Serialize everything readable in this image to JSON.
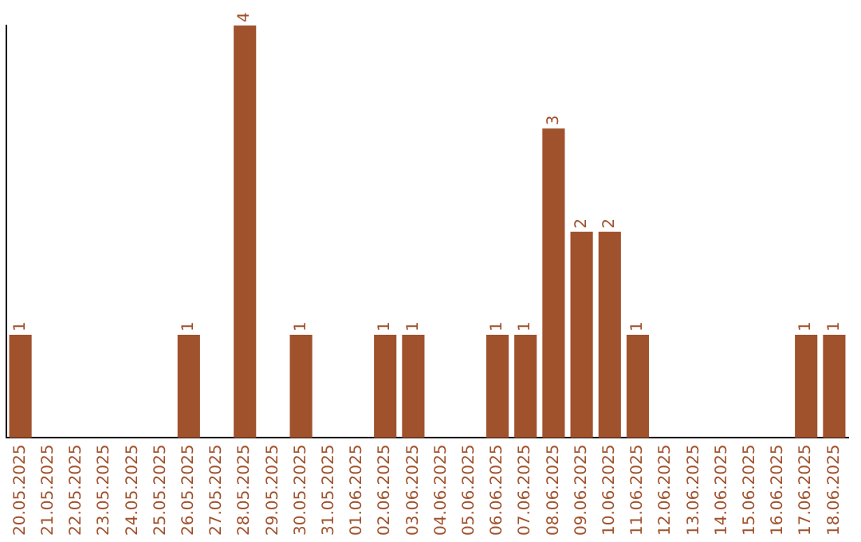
{
  "chart_data": {
    "type": "bar",
    "categories": [
      "20.05.2025",
      "21.05.2025",
      "22.05.2025",
      "23.05.2025",
      "24.05.2025",
      "25.05.2025",
      "26.05.2025",
      "27.05.2025",
      "28.05.2025",
      "29.05.2025",
      "30.05.2025",
      "31.05.2025",
      "01.06.2025",
      "02.06.2025",
      "03.06.2025",
      "04.06.2025",
      "05.06.2025",
      "06.06.2025",
      "07.06.2025",
      "08.06.2025",
      "09.06.2025",
      "10.06.2025",
      "11.06.2025",
      "12.06.2025",
      "13.06.2025",
      "14.06.2025",
      "15.06.2025",
      "16.06.2025",
      "17.06.2025",
      "18.06.2025"
    ],
    "values": [
      1,
      0,
      0,
      0,
      0,
      0,
      1,
      0,
      4,
      0,
      1,
      0,
      0,
      1,
      1,
      0,
      0,
      1,
      1,
      3,
      2,
      2,
      1,
      0,
      0,
      0,
      0,
      0,
      1,
      1
    ],
    "value_labels": [
      "1",
      null,
      null,
      null,
      null,
      null,
      "1",
      null,
      "4",
      null,
      "1",
      null,
      null,
      "1",
      "1",
      null,
      null,
      "1",
      "1",
      "3",
      "2",
      "2",
      "1",
      null,
      null,
      null,
      null,
      null,
      "1",
      "1"
    ],
    "color": "#a0522d",
    "grid": false,
    "legend": false
  }
}
